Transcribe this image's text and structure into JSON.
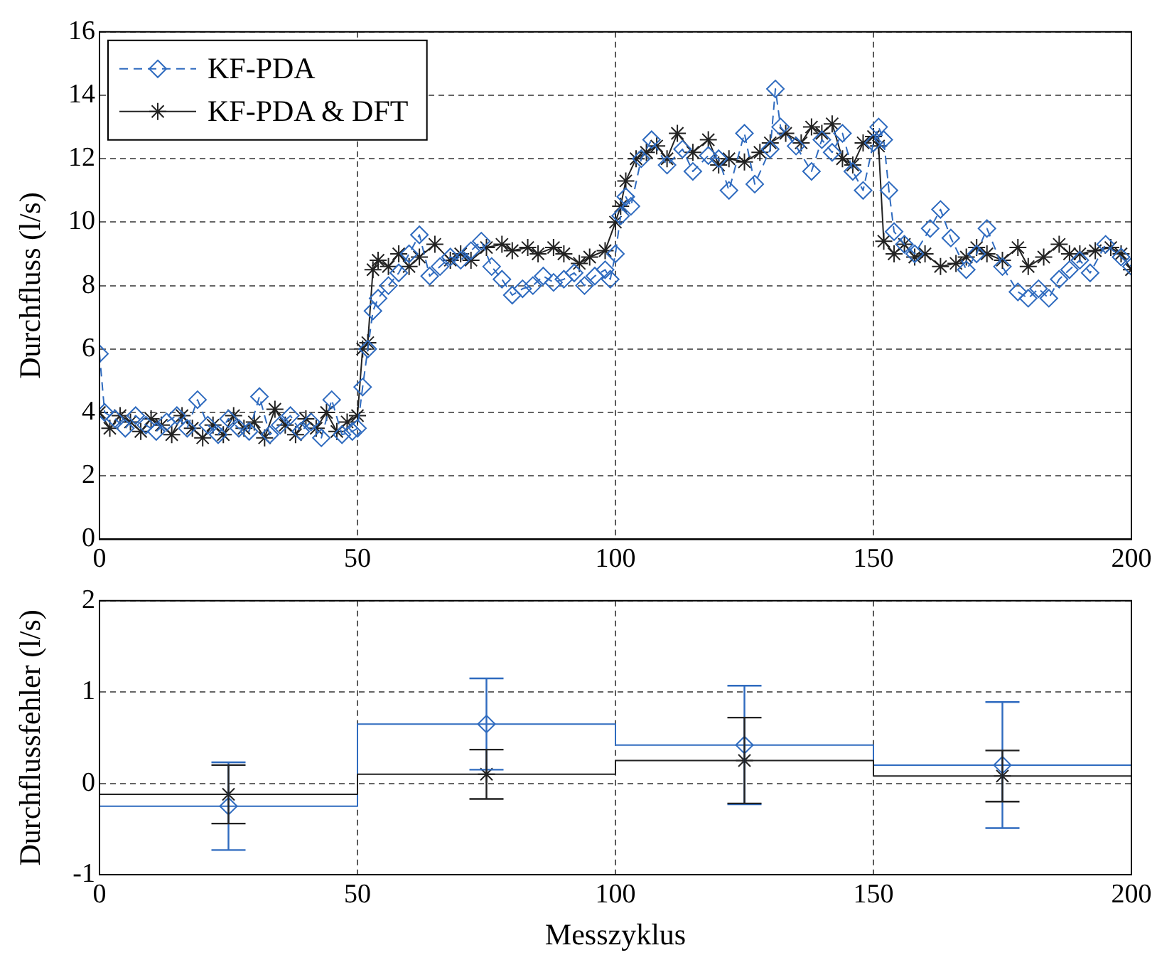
{
  "chart_data": [
    {
      "type": "line",
      "ylabel": "Durchfluss (l/s)",
      "xlim": [
        0,
        200
      ],
      "xticks": [
        0,
        50,
        100,
        150,
        200
      ],
      "ylim": [
        0,
        16
      ],
      "yticks": [
        0,
        2,
        4,
        6,
        8,
        10,
        12,
        14,
        16
      ],
      "grid": true,
      "legend": "top left",
      "series": [
        {
          "name": "KF-PDA",
          "color": "#2f6bbf",
          "marker": "diamond",
          "line_style": "dashed",
          "x": [
            0,
            1,
            3,
            5,
            7,
            9,
            11,
            13,
            15,
            17,
            19,
            21,
            23,
            25,
            27,
            29,
            31,
            33,
            35,
            37,
            39,
            41,
            43,
            45,
            47,
            49,
            50,
            51,
            52,
            53,
            54,
            56,
            58,
            60,
            62,
            64,
            66,
            68,
            70,
            72,
            74,
            76,
            78,
            80,
            82,
            84,
            86,
            88,
            90,
            92,
            94,
            96,
            98,
            99,
            100,
            101,
            102,
            103,
            105,
            107,
            110,
            113,
            115,
            118,
            120,
            122,
            125,
            127,
            130,
            131,
            132,
            135,
            138,
            140,
            142,
            144,
            146,
            148,
            150,
            151,
            152,
            153,
            154,
            156,
            158,
            161,
            163,
            165,
            168,
            170,
            172,
            175,
            178,
            180,
            182,
            184,
            186,
            188,
            190,
            192,
            195,
            198,
            200
          ],
          "values": [
            5.85,
            4.0,
            3.8,
            3.5,
            3.9,
            3.6,
            3.4,
            3.7,
            3.9,
            3.5,
            4.4,
            3.6,
            3.3,
            3.8,
            3.5,
            3.4,
            4.5,
            3.3,
            3.6,
            3.9,
            3.4,
            3.7,
            3.2,
            4.4,
            3.3,
            3.4,
            3.5,
            4.8,
            6.0,
            7.2,
            7.6,
            8.0,
            8.4,
            9.0,
            9.6,
            8.3,
            8.6,
            8.9,
            8.8,
            9.1,
            9.4,
            8.6,
            8.2,
            7.7,
            7.9,
            8.0,
            8.3,
            8.1,
            8.2,
            8.4,
            8.0,
            8.3,
            8.5,
            8.2,
            9.0,
            10.2,
            10.8,
            10.5,
            12.0,
            12.6,
            11.8,
            12.3,
            11.6,
            12.1,
            12.0,
            11.0,
            12.8,
            11.2,
            12.3,
            14.2,
            13.0,
            12.4,
            11.6,
            12.6,
            12.2,
            12.8,
            11.6,
            11.0,
            12.5,
            13.0,
            12.6,
            11.0,
            9.7,
            9.3,
            9.0,
            9.8,
            10.4,
            9.5,
            8.5,
            9.0,
            9.8,
            8.6,
            7.8,
            7.6,
            7.9,
            7.6,
            8.2,
            8.5,
            8.8,
            8.4,
            9.3,
            8.9,
            8.6
          ]
        },
        {
          "name": "KF-PDA & DFT",
          "color": "#222222",
          "marker": "cross",
          "line_style": "solid",
          "x": [
            0,
            2,
            4,
            6,
            8,
            10,
            12,
            14,
            16,
            18,
            20,
            22,
            24,
            26,
            28,
            30,
            32,
            34,
            36,
            38,
            40,
            42,
            44,
            46,
            48,
            50,
            51,
            52,
            53,
            54,
            56,
            58,
            60,
            62,
            65,
            68,
            70,
            72,
            75,
            78,
            80,
            83,
            85,
            88,
            90,
            93,
            95,
            98,
            100,
            101,
            102,
            104,
            106,
            108,
            110,
            112,
            115,
            118,
            120,
            122,
            125,
            128,
            130,
            133,
            136,
            138,
            140,
            142,
            144,
            146,
            148,
            150,
            151,
            152,
            154,
            156,
            158,
            160,
            163,
            166,
            168,
            170,
            172,
            175,
            178,
            180,
            183,
            186,
            188,
            190,
            193,
            196,
            198,
            200
          ],
          "values": [
            4.0,
            3.5,
            3.9,
            3.7,
            3.4,
            3.8,
            3.6,
            3.3,
            3.9,
            3.5,
            3.2,
            3.6,
            3.3,
            3.9,
            3.5,
            3.7,
            3.2,
            4.1,
            3.6,
            3.3,
            3.8,
            3.5,
            4.0,
            3.4,
            3.7,
            3.9,
            6.0,
            6.2,
            8.5,
            8.8,
            8.6,
            9.0,
            8.6,
            8.9,
            9.3,
            8.8,
            9.0,
            8.8,
            9.2,
            9.3,
            9.1,
            9.2,
            9.0,
            9.2,
            9.0,
            8.7,
            8.9,
            9.1,
            10.0,
            10.5,
            11.3,
            12.0,
            12.2,
            12.4,
            12.0,
            12.8,
            12.2,
            12.6,
            11.8,
            12.0,
            11.9,
            12.2,
            12.5,
            12.8,
            12.5,
            13.0,
            12.8,
            13.1,
            12.0,
            11.8,
            12.5,
            12.7,
            12.4,
            9.4,
            9.0,
            9.3,
            8.9,
            9.0,
            8.6,
            8.7,
            8.9,
            9.2,
            9.0,
            8.8,
            9.2,
            8.6,
            8.9,
            9.3,
            9.0,
            9.0,
            9.1,
            9.2,
            9.0,
            8.5
          ]
        }
      ]
    },
    {
      "type": "line",
      "xlabel": "Messzyklus",
      "ylabel": "Durchflussfehler (l/s)",
      "xlim": [
        0,
        200
      ],
      "xticks": [
        0,
        50,
        100,
        150,
        200
      ],
      "ylim": [
        -1,
        2
      ],
      "yticks": [
        -1,
        0,
        1,
        2
      ],
      "grid": true,
      "series": [
        {
          "type": "step",
          "color": "#222222",
          "x": [
            0,
            50,
            100,
            150,
            200
          ],
          "values": [
            -0.12,
            0.1,
            0.25,
            0.08,
            0.08
          ]
        },
        {
          "type": "step",
          "color": "#2f6bbf",
          "x": [
            0,
            50,
            100,
            150,
            200
          ],
          "values": [
            -0.25,
            0.65,
            0.42,
            0.2,
            0.2
          ]
        },
        {
          "type": "scatter",
          "color": "#2f6bbf",
          "marker": "diamond",
          "x": [
            25,
            75,
            125,
            175
          ],
          "values": [
            -0.25,
            0.65,
            0.42,
            0.2
          ],
          "errors": [
            0.48,
            0.5,
            0.65,
            0.69
          ]
        },
        {
          "type": "scatter",
          "color": "#222222",
          "marker": "cross",
          "x": [
            25,
            75,
            125,
            175
          ],
          "values": [
            -0.12,
            0.1,
            0.25,
            0.08
          ],
          "errors": [
            0.32,
            0.27,
            0.47,
            0.28
          ]
        }
      ]
    }
  ]
}
